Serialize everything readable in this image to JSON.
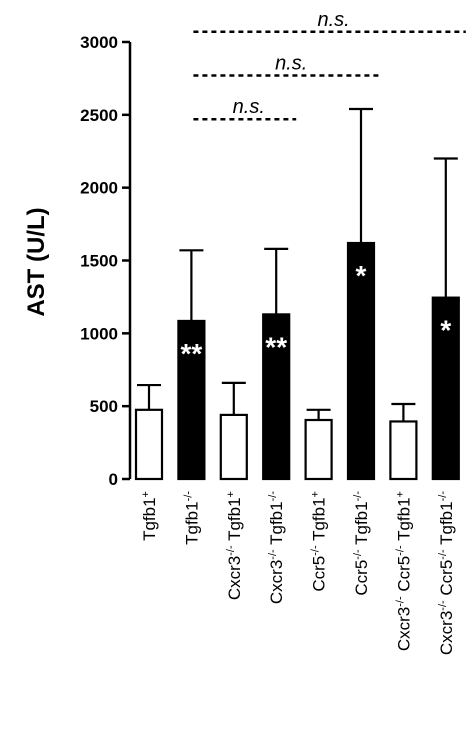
{
  "chart_data": {
    "type": "bar",
    "ylabel": "AST (U/L)",
    "ylim": [
      0,
      3000
    ],
    "yticks": [
      "0",
      "500",
      "1000",
      "1500",
      "2000",
      "2500",
      "3000"
    ],
    "categories": [
      {
        "pre": "",
        "tg": "Tgfb1",
        "sup": "+"
      },
      {
        "pre": "",
        "tg": "Tgfb1",
        "sup": "-/-"
      },
      {
        "pre": "Cxcr3-/-",
        "tg": "Tgfb1",
        "sup": "+"
      },
      {
        "pre": "Cxcr3-/-",
        "tg": "Tgfb1",
        "sup": "-/-"
      },
      {
        "pre": "Ccr5-/-",
        "tg": "Tgfb1",
        "sup": "+"
      },
      {
        "pre": "Ccr5-/-",
        "tg": "Tgfb1",
        "sup": "-/-"
      },
      {
        "pre": "Cxcr3-/- Ccr5-/-",
        "tg": "Tgfb1",
        "sup": "+"
      },
      {
        "pre": "Cxcr3-/- Ccr5-/-",
        "tg": "Tgfb1",
        "sup": "-/-"
      }
    ],
    "values": [
      475,
      1085,
      440,
      1130,
      405,
      1620,
      395,
      1245
    ],
    "errors_upper": [
      645,
      1570,
      660,
      1580,
      475,
      2540,
      515,
      2200
    ],
    "fills": [
      "#ffffff",
      "#000000",
      "#ffffff",
      "#000000",
      "#ffffff",
      "#000000",
      "#ffffff",
      "#000000"
    ],
    "bar_labels": [
      "",
      "**",
      "",
      "**",
      "",
      "*",
      "",
      "*"
    ],
    "significance": [
      {
        "from": 1,
        "to": 3,
        "label": "n.s.",
        "level": 2470
      },
      {
        "from": 1,
        "to": 5,
        "label": "n.s.",
        "level": 2770
      },
      {
        "from": 1,
        "to": 7,
        "label": "n.s.",
        "level": 3070
      }
    ]
  }
}
